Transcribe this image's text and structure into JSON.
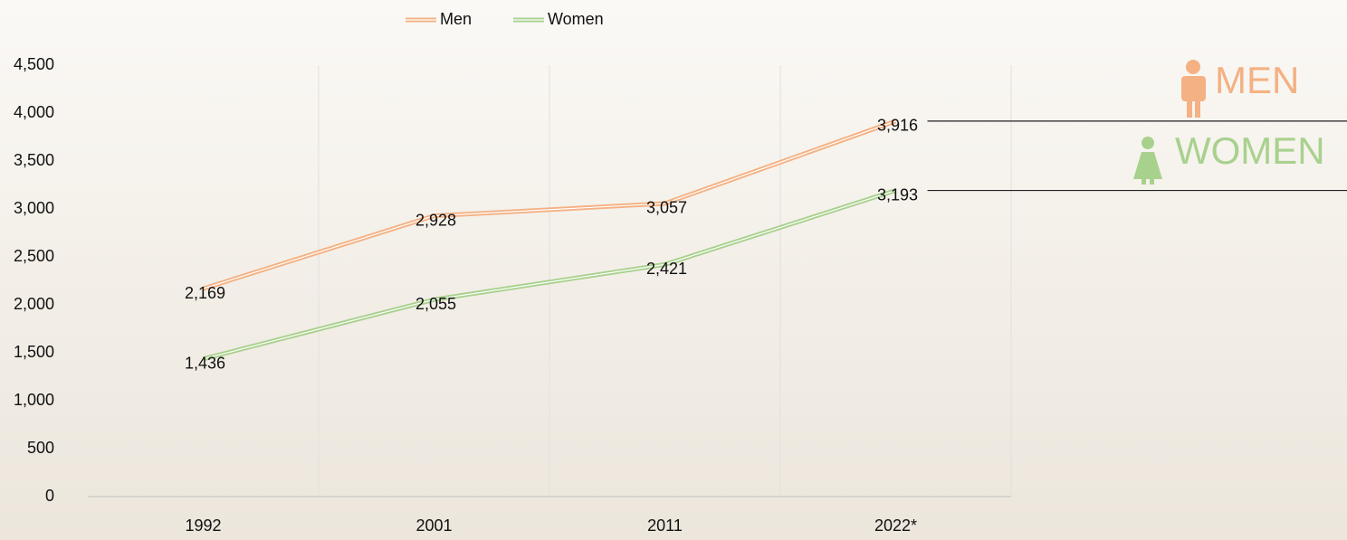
{
  "chart_data": {
    "type": "line",
    "categories": [
      "1992",
      "2001",
      "2011",
      "2022*"
    ],
    "series": [
      {
        "name": "Men",
        "color": "#f4b183",
        "values": [
          2169,
          2928,
          3057,
          3916
        ],
        "value_labels": [
          "2,169",
          "2,928",
          "3,057",
          "3,916"
        ]
      },
      {
        "name": "Women",
        "color": "#a9d18e",
        "values": [
          1436,
          2055,
          2421,
          3193
        ],
        "value_labels": [
          "1,436",
          "2,055",
          "2,421",
          "3,193"
        ]
      }
    ],
    "ylim": [
      0,
      4500
    ],
    "yticks": [
      0,
      500,
      {
        "value": 1000,
        "label": "1,000"
      },
      {
        "value": 1500,
        "label": "1,500"
      },
      {
        "value": 2000,
        "label": "2,000"
      },
      {
        "value": 2500,
        "label": "2,500"
      },
      {
        "value": 3000,
        "label": "3,000"
      },
      {
        "value": 3500,
        "label": "3,500"
      },
      {
        "value": 4000,
        "label": "4,000"
      },
      {
        "value": 4500,
        "label": "4,500"
      }
    ],
    "grid": true,
    "legend": "top",
    "annotations": [
      "MEN",
      "WOMEN"
    ]
  }
}
